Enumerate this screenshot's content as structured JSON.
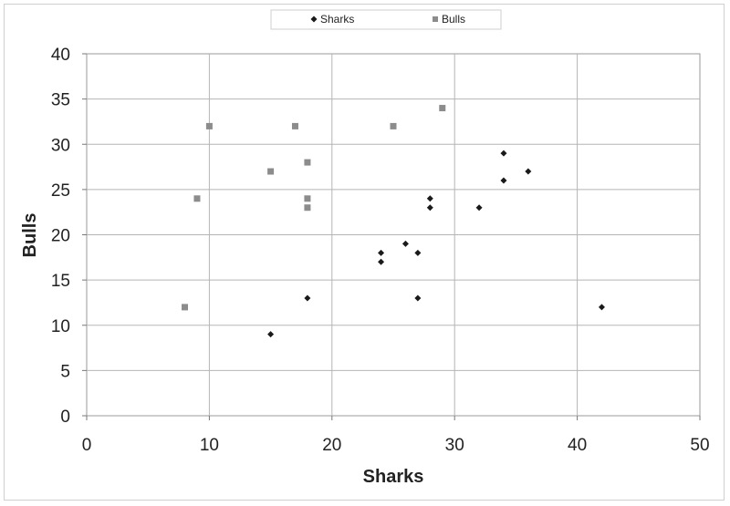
{
  "chart_data": {
    "type": "scatter",
    "title": "",
    "xlabel": "Sharks",
    "ylabel": "Bulls",
    "xlim": [
      0,
      50
    ],
    "ylim": [
      0,
      40
    ],
    "xticks": [
      0,
      10,
      20,
      30,
      40,
      50
    ],
    "yticks": [
      0,
      5,
      10,
      15,
      20,
      25,
      30,
      35,
      40
    ],
    "grid": true,
    "legend_position": "top-center",
    "series": [
      {
        "name": "Sharks",
        "marker": "diamond",
        "color": "#1a1a1a",
        "points": [
          [
            15,
            9
          ],
          [
            18,
            13
          ],
          [
            24,
            17
          ],
          [
            24,
            18
          ],
          [
            26,
            19
          ],
          [
            27,
            18
          ],
          [
            27,
            13
          ],
          [
            28,
            24
          ],
          [
            28,
            23
          ],
          [
            32,
            23
          ],
          [
            34,
            29
          ],
          [
            34,
            26
          ],
          [
            36,
            27
          ],
          [
            42,
            12
          ]
        ]
      },
      {
        "name": "Bulls",
        "marker": "square",
        "color": "#8c8c8c",
        "points": [
          [
            8,
            12
          ],
          [
            9,
            24
          ],
          [
            10,
            32
          ],
          [
            15,
            27
          ],
          [
            17,
            32
          ],
          [
            18,
            28
          ],
          [
            18,
            24
          ],
          [
            18,
            23
          ],
          [
            25,
            32
          ],
          [
            29,
            34
          ]
        ]
      }
    ]
  }
}
